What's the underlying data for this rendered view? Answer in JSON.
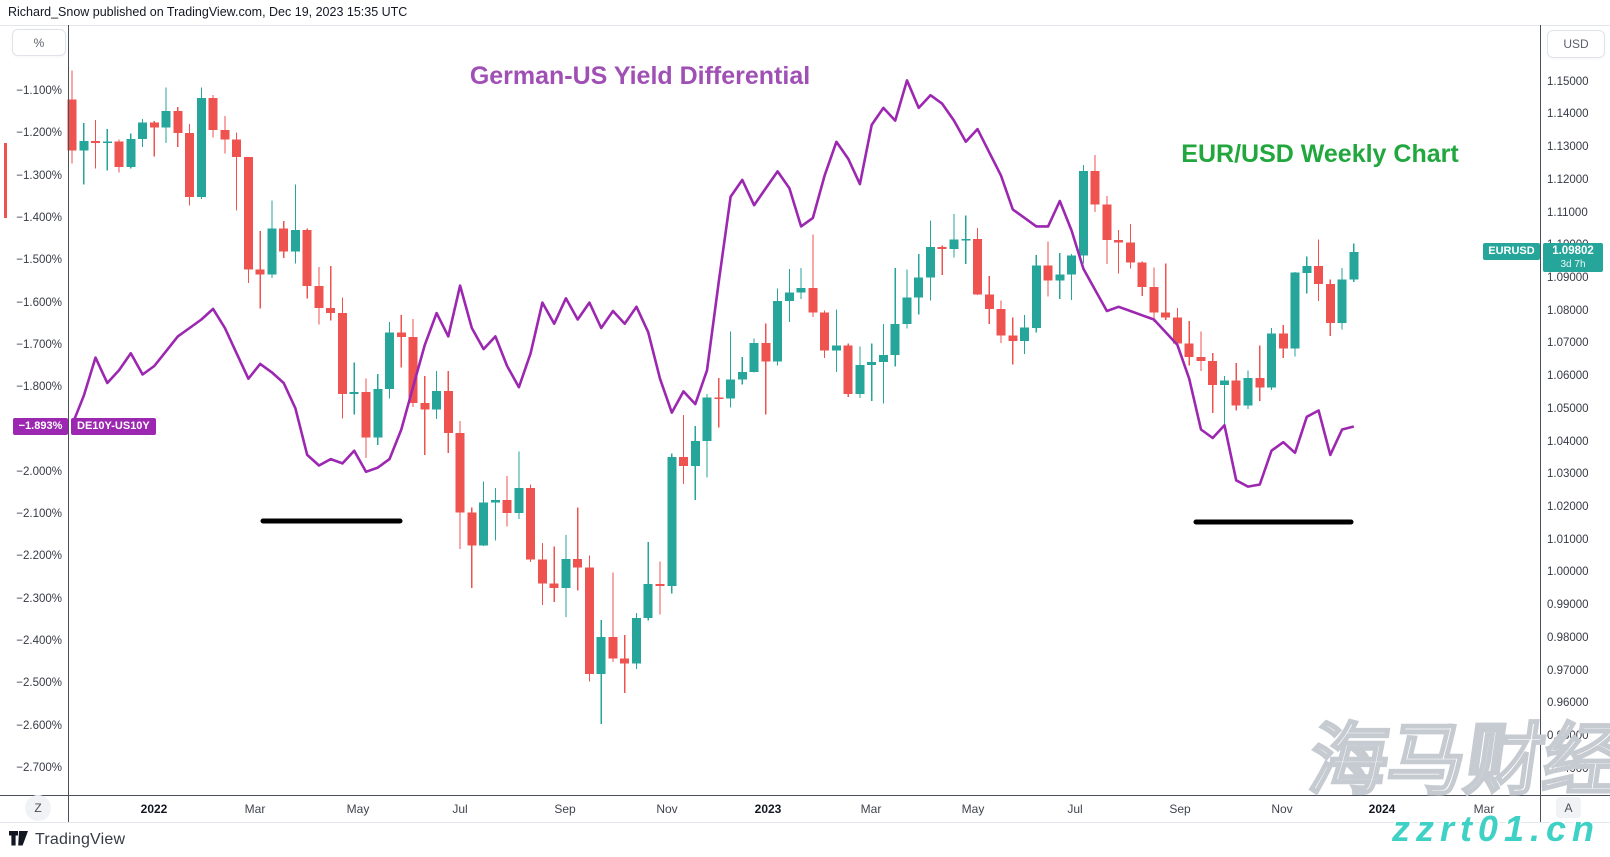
{
  "header": {
    "text": "Richard_Snow published on TradingView.com, Dec 19, 2023 15:35 UTC"
  },
  "titles": {
    "yield": {
      "text": "German-US Yield Differential",
      "color": "#a04fb5"
    },
    "eurusd": {
      "text": "EUR/USD Weekly Chart",
      "color": "#21a73d"
    }
  },
  "left_axis": {
    "unit_button": "%",
    "tag": {
      "label": "−1.893%",
      "value": -1.893
    },
    "series_tag": "DE10Y-US10Y",
    "ticks": [
      {
        "label": "−1.100%",
        "value": -1.1
      },
      {
        "label": "−1.200%",
        "value": -1.2
      },
      {
        "label": "−1.300%",
        "value": -1.3
      },
      {
        "label": "−1.400%",
        "value": -1.4
      },
      {
        "label": "−1.500%",
        "value": -1.5
      },
      {
        "label": "−1.600%",
        "value": -1.6
      },
      {
        "label": "−1.700%",
        "value": -1.7
      },
      {
        "label": "−1.800%",
        "value": -1.8
      },
      {
        "label": "−2.000%",
        "value": -2.0
      },
      {
        "label": "−2.100%",
        "value": -2.1
      },
      {
        "label": "−2.200%",
        "value": -2.2
      },
      {
        "label": "−2.300%",
        "value": -2.3
      },
      {
        "label": "−2.400%",
        "value": -2.4
      },
      {
        "label": "−2.500%",
        "value": -2.5
      },
      {
        "label": "−2.600%",
        "value": -2.6
      },
      {
        "label": "−2.700%",
        "value": -2.7
      }
    ]
  },
  "right_axis": {
    "unit_button": "USD",
    "price_tag": {
      "symbol": "EURUSD",
      "price": "1.09802",
      "countdown": "3d 7h",
      "value": 1.09802
    },
    "ticks": [
      {
        "label": "1.15000",
        "value": 1.15
      },
      {
        "label": "1.14000",
        "value": 1.14
      },
      {
        "label": "1.13000",
        "value": 1.13
      },
      {
        "label": "1.12000",
        "value": 1.12
      },
      {
        "label": "1.11000",
        "value": 1.11
      },
      {
        "label": "1.10000",
        "value": 1.1
      },
      {
        "label": "1.09000",
        "value": 1.09
      },
      {
        "label": "1.08000",
        "value": 1.08
      },
      {
        "label": "1.07000",
        "value": 1.07
      },
      {
        "label": "1.06000",
        "value": 1.06
      },
      {
        "label": "1.05000",
        "value": 1.05
      },
      {
        "label": "1.04000",
        "value": 1.04
      },
      {
        "label": "1.03000",
        "value": 1.03
      },
      {
        "label": "1.02000",
        "value": 1.02
      },
      {
        "label": "1.01000",
        "value": 1.01
      },
      {
        "label": "1.00000",
        "value": 1.0
      },
      {
        "label": "0.99000",
        "value": 0.99
      },
      {
        "label": "0.98000",
        "value": 0.98
      },
      {
        "label": "0.97000",
        "value": 0.97
      },
      {
        "label": "0.96000",
        "value": 0.96
      },
      {
        "label": "0.95000",
        "value": 0.95
      },
      {
        "label": "0.94000",
        "value": 0.94
      }
    ]
  },
  "time_axis": {
    "reset_button": "Z",
    "autoscale_button": "A",
    "ticks": [
      {
        "label": "2022",
        "week": 8.0,
        "major": true
      },
      {
        "label": "Mar",
        "week": 16.6,
        "major": false
      },
      {
        "label": "May",
        "week": 25.3,
        "major": false
      },
      {
        "label": "Jul",
        "week": 34.0,
        "major": false
      },
      {
        "label": "Sep",
        "week": 42.9,
        "major": false
      },
      {
        "label": "Nov",
        "week": 51.6,
        "major": false
      },
      {
        "label": "2023",
        "week": 60.2,
        "major": true
      },
      {
        "label": "Mar",
        "week": 68.9,
        "major": false
      },
      {
        "label": "May",
        "week": 77.6,
        "major": false
      },
      {
        "label": "Jul",
        "week": 86.3,
        "major": false
      },
      {
        "label": "Sep",
        "week": 95.2,
        "major": false
      },
      {
        "label": "Nov",
        "week": 103.9,
        "major": false
      },
      {
        "label": "2024",
        "week": 112.4,
        "major": true
      },
      {
        "label": "Mar",
        "week": 121.1,
        "major": false
      }
    ]
  },
  "footer": {
    "brand": "TradingView"
  },
  "watermark": {
    "cjk": "海马财经",
    "url": "zzrt01.cn",
    "url_color": "#3fd1c6"
  },
  "colors": {
    "up": "#26a69a",
    "down": "#ef5350",
    "yield_line": "#9c27b0",
    "tag_purple": "#9c27b0",
    "tag_teal": "#26a69a",
    "annotation": "#000000"
  },
  "chart_data": {
    "type": "candlestick+line",
    "title": "German-US Yield Differential vs EUR/USD Weekly Chart",
    "series": [
      {
        "name": "EURUSD weekly candles",
        "axis": "right",
        "style": "candlestick"
      },
      {
        "name": "DE10Y-US10Y yield differential",
        "axis": "left",
        "style": "line",
        "color": "#9c27b0",
        "last_value": -1.893
      }
    ],
    "right_axis_range": [
      0.94,
      1.15
    ],
    "left_axis_range": [
      -2.7,
      -1.1
    ],
    "grid": false,
    "candles_ohlc": [
      [
        1.1445,
        1.1535,
        1.125,
        1.129
      ],
      [
        1.129,
        1.1374,
        1.1186,
        1.1318
      ],
      [
        1.1318,
        1.1383,
        1.1235,
        1.1313
      ],
      [
        1.1313,
        1.1355,
        1.1228,
        1.1317
      ],
      [
        1.1317,
        1.1324,
        1.1222,
        1.1239
      ],
      [
        1.1239,
        1.1342,
        1.1234,
        1.1325
      ],
      [
        1.1325,
        1.1386,
        1.13,
        1.1375
      ],
      [
        1.1375,
        1.138,
        1.1272,
        1.136
      ],
      [
        1.136,
        1.1483,
        1.1313,
        1.1411
      ],
      [
        1.1411,
        1.1422,
        1.1301,
        1.1343
      ],
      [
        1.1343,
        1.137,
        1.1121,
        1.1148
      ],
      [
        1.1148,
        1.1483,
        1.1141,
        1.145
      ],
      [
        1.145,
        1.146,
        1.133,
        1.1352
      ],
      [
        1.1352,
        1.1395,
        1.128,
        1.1324
      ],
      [
        1.1324,
        1.1344,
        1.1106,
        1.127
      ],
      [
        1.127,
        1.127,
        1.0885,
        1.0926
      ],
      [
        1.0926,
        1.1043,
        1.0806,
        1.0911
      ],
      [
        1.0911,
        1.1137,
        1.09,
        1.1051
      ],
      [
        1.1051,
        1.1074,
        1.0961,
        1.0981
      ],
      [
        1.0981,
        1.1185,
        1.0945,
        1.1046
      ],
      [
        1.1046,
        1.1052,
        1.0837,
        1.0876
      ],
      [
        1.0876,
        1.0933,
        1.0758,
        1.0808
      ],
      [
        1.0808,
        1.0936,
        1.077,
        1.0793
      ],
      [
        1.0793,
        1.084,
        1.0471,
        1.0545
      ],
      [
        1.0545,
        1.0642,
        1.0483,
        1.0551
      ],
      [
        1.0551,
        1.0593,
        1.0349,
        1.0412
      ],
      [
        1.0412,
        1.0607,
        1.0389,
        1.0561
      ],
      [
        1.0561,
        1.0765,
        1.0532,
        1.0733
      ],
      [
        1.0733,
        1.0787,
        1.0627,
        1.072
      ],
      [
        1.072,
        1.0774,
        1.0506,
        1.0518
      ],
      [
        1.0518,
        1.0601,
        1.0359,
        1.0498
      ],
      [
        1.0498,
        1.0615,
        1.0469,
        1.0554
      ],
      [
        1.0554,
        1.0616,
        1.0365,
        1.0426
      ],
      [
        1.0426,
        1.0463,
        1.0072,
        1.0183
      ],
      [
        1.0183,
        1.0199,
        0.9952,
        1.0082
      ],
      [
        1.0082,
        1.0278,
        1.008,
        1.0213
      ],
      [
        1.0213,
        1.0258,
        1.0097,
        1.0222
      ],
      [
        1.0222,
        1.0294,
        1.0141,
        1.0181
      ],
      [
        1.0181,
        1.0369,
        1.0163,
        1.0258
      ],
      [
        1.0258,
        1.0269,
        1.0032,
        1.0039
      ],
      [
        1.0039,
        1.009,
        0.99,
        0.9966
      ],
      [
        0.9966,
        1.0079,
        0.991,
        0.9952
      ],
      [
        0.9952,
        1.0114,
        0.9864,
        1.0041
      ],
      [
        1.0041,
        1.0198,
        0.9945,
        1.0015
      ],
      [
        1.0015,
        1.0051,
        0.9667,
        0.969
      ],
      [
        0.969,
        0.9854,
        0.9536,
        0.9802
      ],
      [
        0.9802,
        0.9999,
        0.9726,
        0.9737
      ],
      [
        0.9737,
        0.9808,
        0.9632,
        0.9721
      ],
      [
        0.9721,
        0.9876,
        0.9704,
        0.9861
      ],
      [
        0.9861,
        1.0093,
        0.9853,
        0.9965
      ],
      [
        0.9965,
        1.0034,
        0.9872,
        0.9959
      ],
      [
        0.9959,
        1.0364,
        0.9936,
        1.0353
      ],
      [
        1.0353,
        1.0481,
        1.0271,
        1.0325
      ],
      [
        1.0325,
        1.0448,
        1.0222,
        1.0402
      ],
      [
        1.0402,
        1.0545,
        1.029,
        1.0535
      ],
      [
        1.0535,
        1.0595,
        1.0443,
        1.0531
      ],
      [
        1.0531,
        1.0737,
        1.0504,
        1.059
      ],
      [
        1.059,
        1.0659,
        1.0575,
        1.0613
      ],
      [
        1.0613,
        1.0715,
        1.0611,
        1.0702
      ],
      [
        1.0702,
        1.0761,
        1.0482,
        1.0645
      ],
      [
        1.0645,
        1.0868,
        1.0632,
        1.083
      ],
      [
        1.083,
        1.0927,
        1.0766,
        1.0855
      ],
      [
        1.0855,
        1.093,
        1.0835,
        1.087
      ],
      [
        1.087,
        1.1033,
        1.078,
        1.0794
      ],
      [
        1.0794,
        1.08,
        1.0655,
        1.0679
      ],
      [
        1.0679,
        1.0804,
        1.0613,
        1.0694
      ],
      [
        1.0694,
        1.0699,
        1.0536,
        1.0546
      ],
      [
        1.0546,
        1.0691,
        1.0533,
        1.0634
      ],
      [
        1.0634,
        1.07,
        1.0524,
        1.0643
      ],
      [
        1.0643,
        1.076,
        1.0516,
        1.0665
      ],
      [
        1.0665,
        1.093,
        1.063,
        1.076
      ],
      [
        1.076,
        1.0926,
        1.0745,
        1.0841
      ],
      [
        1.0841,
        1.0973,
        1.0788,
        1.0901
      ],
      [
        1.0901,
        1.1075,
        1.0831,
        1.0994
      ],
      [
        1.0994,
        1.1,
        1.0909,
        1.0989
      ],
      [
        1.0989,
        1.1096,
        1.0963,
        1.1018
      ],
      [
        1.1018,
        1.1091,
        1.0942,
        1.1019
      ],
      [
        1.1019,
        1.1053,
        1.0848,
        1.085
      ],
      [
        1.085,
        1.0906,
        1.076,
        1.0805
      ],
      [
        1.0805,
        1.0831,
        1.0701,
        1.0724
      ],
      [
        1.0724,
        1.0779,
        1.0635,
        1.0707
      ],
      [
        1.0707,
        1.0787,
        1.0667,
        1.0748
      ],
      [
        1.0748,
        1.0971,
        1.0733,
        1.0938
      ],
      [
        1.0938,
        1.1012,
        1.0844,
        1.0893
      ],
      [
        1.0893,
        1.0977,
        1.0835,
        1.091
      ],
      [
        1.091,
        1.0973,
        1.0833,
        1.0968
      ],
      [
        1.0968,
        1.1245,
        1.0944,
        1.1227
      ],
      [
        1.1227,
        1.1276,
        1.1102,
        1.1125
      ],
      [
        1.1125,
        1.115,
        1.0943,
        1.1016
      ],
      [
        1.1016,
        1.1046,
        1.0913,
        1.1009
      ],
      [
        1.1009,
        1.1065,
        1.0929,
        1.0947
      ],
      [
        1.0947,
        1.095,
        1.0845,
        1.0873
      ],
      [
        1.0873,
        1.0932,
        1.0766,
        1.0795
      ],
      [
        1.0795,
        1.0945,
        1.0771,
        1.0779
      ],
      [
        1.0779,
        1.0809,
        1.0686,
        1.07
      ],
      [
        1.07,
        1.0769,
        1.0632,
        1.0658
      ],
      [
        1.0658,
        1.0737,
        1.0615,
        1.0646
      ],
      [
        1.0646,
        1.0671,
        1.0488,
        1.0573
      ],
      [
        1.0573,
        1.06,
        1.0448,
        1.0586
      ],
      [
        1.0586,
        1.064,
        1.0495,
        1.051
      ],
      [
        1.051,
        1.0617,
        1.05,
        1.0594
      ],
      [
        1.0594,
        1.0694,
        1.0524,
        1.0565
      ],
      [
        1.0565,
        1.0747,
        1.0557,
        1.073
      ],
      [
        1.073,
        1.0756,
        1.0656,
        1.0685
      ],
      [
        1.0685,
        1.0919,
        1.066,
        1.0916
      ],
      [
        1.0916,
        1.0965,
        1.0852,
        1.0937
      ],
      [
        1.0937,
        1.1017,
        1.0829,
        1.0881
      ],
      [
        1.0881,
        1.0895,
        1.0723,
        1.0763
      ],
      [
        1.0763,
        1.093,
        1.0742,
        1.0895
      ],
      [
        1.0895,
        1.1005,
        1.0888,
        1.098
      ]
    ],
    "yield_line": [
      -1.89,
      -1.82,
      -1.73,
      -1.79,
      -1.76,
      -1.72,
      -1.77,
      -1.75,
      -1.715,
      -1.68,
      -1.66,
      -1.64,
      -1.615,
      -1.66,
      -1.72,
      -1.78,
      -1.745,
      -1.765,
      -1.79,
      -1.85,
      -1.96,
      -1.985,
      -1.97,
      -1.98,
      -1.95,
      -2.0,
      -1.99,
      -1.97,
      -1.9,
      -1.8,
      -1.7,
      -1.625,
      -1.68,
      -1.56,
      -1.66,
      -1.71,
      -1.68,
      -1.75,
      -1.8,
      -1.72,
      -1.6,
      -1.65,
      -1.59,
      -1.64,
      -1.6,
      -1.66,
      -1.62,
      -1.65,
      -1.61,
      -1.67,
      -1.78,
      -1.86,
      -1.81,
      -1.84,
      -1.76,
      -1.55,
      -1.35,
      -1.31,
      -1.37,
      -1.33,
      -1.29,
      -1.33,
      -1.42,
      -1.4,
      -1.3,
      -1.22,
      -1.26,
      -1.32,
      -1.18,
      -1.14,
      -1.17,
      -1.075,
      -1.14,
      -1.11,
      -1.13,
      -1.17,
      -1.22,
      -1.19,
      -1.245,
      -1.3,
      -1.38,
      -1.4,
      -1.42,
      -1.42,
      -1.36,
      -1.43,
      -1.52,
      -1.57,
      -1.62,
      -1.61,
      -1.62,
      -1.63,
      -1.64,
      -1.67,
      -1.7,
      -1.78,
      -1.9,
      -1.92,
      -1.89,
      -2.02,
      -2.035,
      -2.03,
      -1.95,
      -1.93,
      -1.955,
      -1.87,
      -1.855,
      -1.96,
      -1.9,
      -1.893
    ],
    "annotations": [
      {
        "type": "hline-segment",
        "from_week": 17.2,
        "to_week": 28.9,
        "value": -2.116
      },
      {
        "type": "hline-segment",
        "from_week": 96.6,
        "to_week": 109.8,
        "value": -2.119
      }
    ]
  }
}
